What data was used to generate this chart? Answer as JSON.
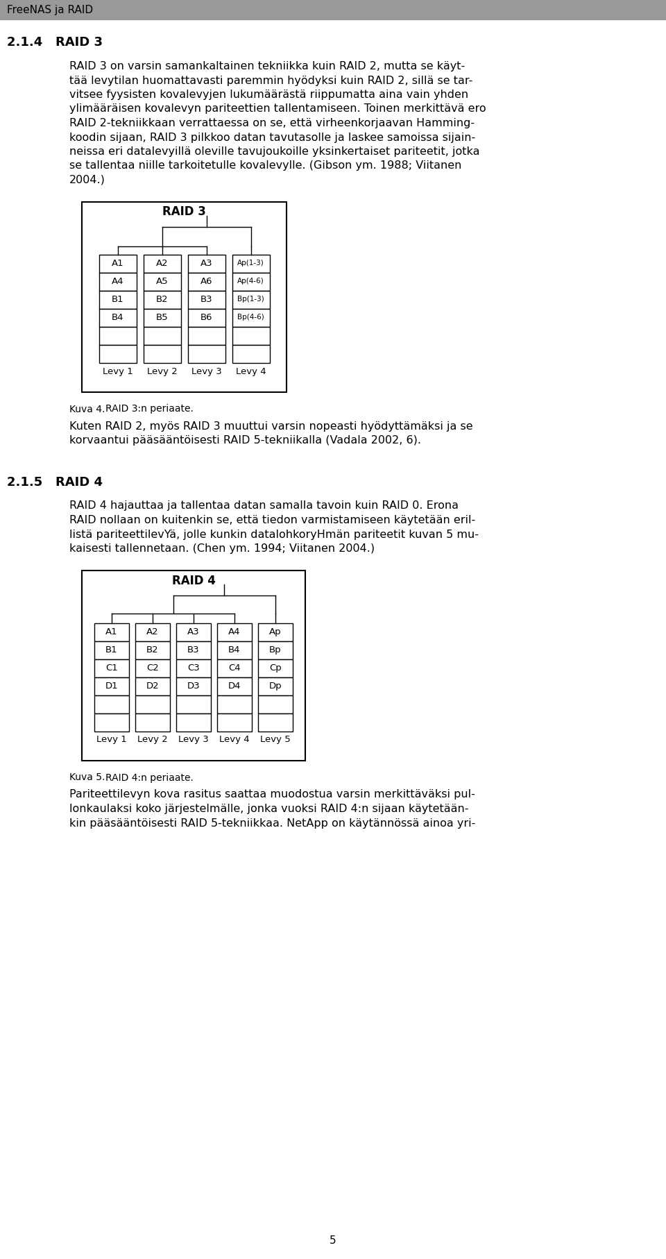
{
  "page_title": "FreeNAS ja RAID",
  "section_214": "2.1.4   RAID 3",
  "para_214_lines": [
    "RAID 3 on varsin samankaltainen tekniikka kuin RAID 2, mutta se käyt-",
    "tää levytilan huomattavasti paremmin hyödyksi kuin RAID 2, sillä se tar-",
    "vitsee fyysisten kovalevyjen lukumäärästä riippumatta aina vain yhden",
    "ylimääräisen kovalevyn pariteettien tallentamiseen. Toinen merkittävä ero",
    "RAID 2-tekniikkaan verrattaessa on se, että virheenkorjaavan Hamming-",
    "koodin sijaan, RAID 3 pilkkoo datan tavutasolle ja laskee samoissa sijain-",
    "neissa eri datalevyillä oleville tavujoukoille yksinkertaiset pariteetit, jotka",
    "se tallentaa niille tarkoitetulle kovalevylle. (Gibson ym. 1988; Viitanen",
    "2004.)"
  ],
  "raid3_title": "RAID 3",
  "raid3_drives": [
    "Levy 1",
    "Levy 2",
    "Levy 3",
    "Levy 4"
  ],
  "raid3_cells_per_drive": [
    [
      "A1",
      "A4",
      "B1",
      "B4",
      "",
      ""
    ],
    [
      "A2",
      "A5",
      "B2",
      "B5",
      "",
      ""
    ],
    [
      "A3",
      "A6",
      "B3",
      "B6",
      "",
      ""
    ],
    [
      "Ap(1-3)",
      "Ap(4-6)",
      "Bp(1-3)",
      "Bp(4-6)",
      "",
      ""
    ]
  ],
  "kuva4": "Kuva 4.",
  "kuva4_caption": "RAID 3:n periaate.",
  "after4_lines": [
    "Kuten RAID 2, myös RAID 3 muuttui varsin nopeasti hyödyttämäksi ja se",
    "korvaantui pääsääntöisesti RAID 5-tekniikalla (Vadala 2002, 6)."
  ],
  "section_215": "2.1.5   RAID 4",
  "para_215_lines": [
    "RAID 4 hajauttaa ja tallentaa datan samalla tavoin kuin RAID 0. Erona",
    "RAID nollaan on kuitenkin se, että tiedon varmistamiseen käytetään eril-",
    "listä pariteettilevYä, jolle kunkin datalohkoryHmän pariteetit kuvan 5 mu-",
    "kaisesti tallennetaan. (Chen ym. 1994; Viitanen 2004.)"
  ],
  "raid4_title": "RAID 4",
  "raid4_drives": [
    "Levy 1",
    "Levy 2",
    "Levy 3",
    "Levy 4",
    "Levy 5"
  ],
  "raid4_cells_per_drive": [
    [
      "A1",
      "B1",
      "C1",
      "D1",
      "",
      ""
    ],
    [
      "A2",
      "B2",
      "C2",
      "D2",
      "",
      ""
    ],
    [
      "A3",
      "B3",
      "C3",
      "D3",
      "",
      ""
    ],
    [
      "A4",
      "B4",
      "C4",
      "D4",
      "",
      ""
    ],
    [
      "Ap",
      "Bp",
      "Cp",
      "Dp",
      "",
      ""
    ]
  ],
  "kuva5": "Kuva 5.",
  "kuva5_caption": "RAID 4:n periaate.",
  "after5_lines": [
    "Pariteettilevyn kova rasitus saattaa muodostua varsin merkittäväksi pul-",
    "lonkaulaksi koko järjestelmälle, jonka vuoksi RAID 4:n sijaan käytetään-",
    "kin pääsääntöisesti RAID 5-tekniikkaa. NetApp on käytännössä ainoa yri-"
  ],
  "page_number": "5",
  "bg_color": "#ffffff",
  "text_color": "#000000",
  "header_bar_color": "#999999",
  "lw_outer": 1.5,
  "lw_inner": 1.0
}
